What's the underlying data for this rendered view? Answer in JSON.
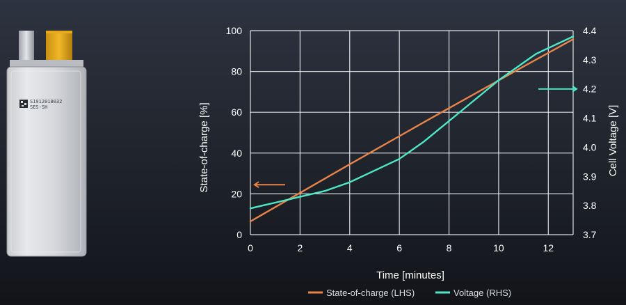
{
  "battery": {
    "label_line1": "S1912018032",
    "label_line2": "SES-SH"
  },
  "chart_data": {
    "type": "line",
    "xlabel": "Time [minutes]",
    "ylabel_left": "State-of-charge [%]",
    "ylabel_right": "Cell Voltage [V]",
    "xlim": [
      0,
      13
    ],
    "ylim_left": [
      0,
      100
    ],
    "ylim_right": [
      3.7,
      4.4
    ],
    "x_ticks": [
      "0",
      "2",
      "4",
      "6",
      "8",
      "10",
      "12"
    ],
    "y_ticks_left": [
      "0",
      "20",
      "40",
      "60",
      "80",
      "100"
    ],
    "y_ticks_right": [
      "3.7",
      "3.8",
      "3.9",
      "4.0",
      "4.1",
      "4.2",
      "4.3",
      "4.4"
    ],
    "grid": true,
    "legend_position": "bottom",
    "series": [
      {
        "name": "State-of-charge (LHS)",
        "axis": "left",
        "color": "#e8834a",
        "x": [
          0,
          1,
          2,
          3,
          4,
          5,
          6,
          7,
          8,
          9,
          10,
          11,
          12,
          13
        ],
        "y": [
          6.5,
          13.5,
          20.5,
          27.5,
          34.5,
          41.4,
          48.3,
          55.2,
          62.0,
          68.8,
          75.6,
          82.4,
          89.1,
          95.8
        ]
      },
      {
        "name": "Voltage (RHS)",
        "axis": "right",
        "color": "#4de8c8",
        "x": [
          0,
          0.5,
          1,
          1.5,
          2,
          3,
          4,
          5,
          6,
          7,
          8,
          9,
          10,
          10.5,
          11,
          11.5,
          12,
          12.5,
          13
        ],
        "y": [
          3.79,
          3.8,
          3.81,
          3.82,
          3.83,
          3.85,
          3.88,
          3.92,
          3.96,
          4.02,
          4.09,
          4.16,
          4.23,
          4.26,
          4.29,
          4.32,
          4.34,
          4.36,
          4.38
        ]
      }
    ],
    "annotations": [
      {
        "type": "arrow",
        "direction": "left",
        "color": "#e8834a",
        "x": 1.4,
        "y_left": 24.5,
        "meaning": "LHS"
      },
      {
        "type": "arrow",
        "direction": "right",
        "color": "#4de8c8",
        "x": 11.6,
        "y_right": 4.2,
        "meaning": "RHS"
      }
    ]
  }
}
